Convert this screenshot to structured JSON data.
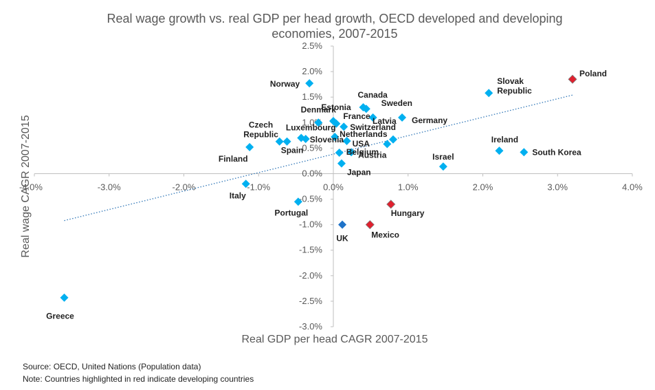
{
  "chart_data": {
    "type": "scatter",
    "title_lines": [
      "Real wage growth vs. real GDP per head growth, OECD developed and developing",
      "economies, 2007-2015"
    ],
    "xlabel": "Real GDP per head CAGR 2007-2015",
    "ylabel": "Real wage CAGR 2007-2015",
    "xlim": [
      -4.0,
      4.0
    ],
    "ylim": [
      -3.0,
      2.5
    ],
    "x_ticks": [
      -4.0,
      -3.0,
      -2.0,
      -1.0,
      0.0,
      1.0,
      2.0,
      3.0,
      4.0
    ],
    "x_tick_labels": [
      "-4.0%",
      "-3.0%",
      "-2.0%",
      "-1.0%",
      "0.0%",
      "1.0%",
      "2.0%",
      "3.0%",
      "4.0%"
    ],
    "y_ticks": [
      2.5,
      2.0,
      1.5,
      1.0,
      0.5,
      0.0,
      -0.5,
      -1.0,
      -1.5,
      -2.0,
      -2.5,
      -3.0
    ],
    "y_tick_labels": [
      "2.5%",
      "2.0%",
      "1.5%",
      "1.0%",
      "0.5%",
      "0.0%",
      "-0.5%",
      "-1.0%",
      "-1.5%",
      "-2.0%",
      "-2.5%",
      "-3.0%"
    ],
    "grid": false,
    "legend": "none",
    "colors": {
      "developed": "#00b0f0",
      "developing": "#e0202e",
      "highlight": "#1f73c8",
      "trendline": "#2e75b6",
      "axis": "#bfbfbf",
      "text": "#595959"
    },
    "trendline": {
      "style": "dotted",
      "x": [
        -3.6,
        3.2
      ],
      "y": [
        -0.92,
        1.54
      ]
    },
    "points": [
      {
        "label": "Poland",
        "x": 3.2,
        "y": 1.85,
        "group": "developing"
      },
      {
        "label": "Slovak Republic",
        "x": 2.08,
        "y": 1.58,
        "group": "developed"
      },
      {
        "label": "Norway",
        "x": -0.32,
        "y": 1.77,
        "group": "developed"
      },
      {
        "label": "Canada",
        "x": 0.4,
        "y": 1.3,
        "group": "developed"
      },
      {
        "label": "",
        "x": 0.44,
        "y": 1.27,
        "group": "developed"
      },
      {
        "label": "Sweden",
        "x": 0.53,
        "y": 1.1,
        "group": "developed"
      },
      {
        "label": "Germany",
        "x": 0.92,
        "y": 1.1,
        "group": "developed"
      },
      {
        "label": "Denmark",
        "x": -0.2,
        "y": 1.0,
        "group": "developed"
      },
      {
        "label": "Estonia",
        "x": 0.0,
        "y": 1.03,
        "group": "developed"
      },
      {
        "label": "France",
        "x": 0.04,
        "y": 0.98,
        "group": "developed"
      },
      {
        "label": "Latvia",
        "x": 0.8,
        "y": 0.67,
        "group": "developed"
      },
      {
        "label": "Switzerland",
        "x": 0.14,
        "y": 0.92,
        "group": "developed"
      },
      {
        "label": "Netherlands",
        "x": 0.02,
        "y": 0.72,
        "group": "developed"
      },
      {
        "label": "USA",
        "x": 0.18,
        "y": 0.64,
        "group": "developed"
      },
      {
        "label": "",
        "x": 0.72,
        "y": 0.58,
        "group": "developed"
      },
      {
        "label": "Austria",
        "x": 0.24,
        "y": 0.42,
        "group": "developed"
      },
      {
        "label": "Belgium",
        "x": 0.08,
        "y": 0.41,
        "group": "developed"
      },
      {
        "label": "Japan",
        "x": 0.11,
        "y": 0.2,
        "group": "developed"
      },
      {
        "label": "Czech Republic",
        "x": -0.62,
        "y": 0.63,
        "group": "developed"
      },
      {
        "label": "Luxembourg",
        "x": -0.43,
        "y": 0.7,
        "group": "developed"
      },
      {
        "label": "Slovenia",
        "x": -0.37,
        "y": 0.68,
        "group": "developed"
      },
      {
        "label": "Spain",
        "x": -0.72,
        "y": 0.63,
        "group": "developed"
      },
      {
        "label": "Finland",
        "x": -1.12,
        "y": 0.52,
        "group": "developed"
      },
      {
        "label": "Ireland",
        "x": 2.22,
        "y": 0.45,
        "group": "developed"
      },
      {
        "label": "South Korea",
        "x": 2.55,
        "y": 0.42,
        "group": "developed"
      },
      {
        "label": "Israel",
        "x": 1.47,
        "y": 0.14,
        "group": "developed"
      },
      {
        "label": "Italy",
        "x": -1.17,
        "y": -0.2,
        "group": "developed"
      },
      {
        "label": "Portugal",
        "x": -0.47,
        "y": -0.55,
        "group": "developed"
      },
      {
        "label": "Hungary",
        "x": 0.77,
        "y": -0.6,
        "group": "developing"
      },
      {
        "label": "UK",
        "x": 0.12,
        "y": -1.0,
        "group": "highlight"
      },
      {
        "label": "Mexico",
        "x": 0.49,
        "y": -1.0,
        "group": "developing"
      },
      {
        "label": "Greece",
        "x": -3.6,
        "y": -2.43,
        "group": "developed"
      }
    ]
  },
  "footer": {
    "source": "Source: OECD, United Nations (Population data)",
    "note": "Note: Countries highlighted in red indicate developing countries"
  }
}
